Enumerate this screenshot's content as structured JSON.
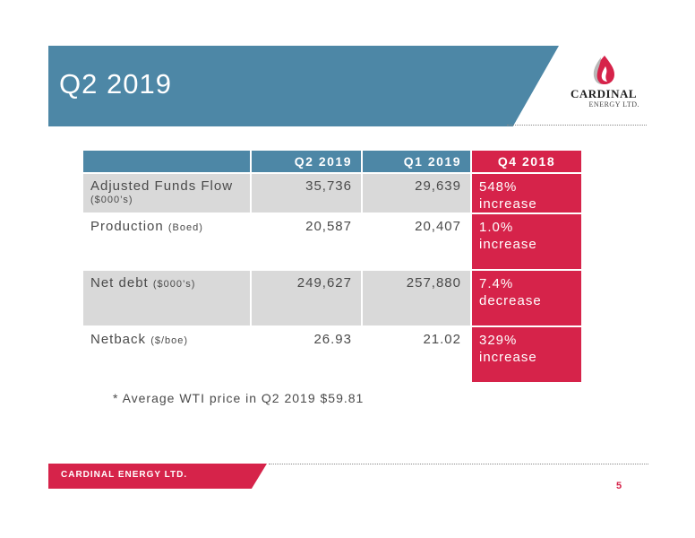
{
  "slide": {
    "title": "Q2 2019",
    "page_number": "5"
  },
  "logo": {
    "name": "CARDINAL",
    "subtitle": "ENERGY LTD."
  },
  "table": {
    "headers": [
      "",
      "Q2 2019",
      "Q1 2019",
      "Q4 2018"
    ],
    "rows": [
      {
        "label": "Adjusted Funds Flow",
        "unit": "($000’s)",
        "q2": "35,736",
        "q1": "29,639",
        "change_value": "548%",
        "change_word": "increase"
      },
      {
        "label": "Production",
        "unit": "(Boed)",
        "q2": "20,587",
        "q1": "20,407",
        "change_value": "1.0%",
        "change_word": "increase"
      },
      {
        "label": "Net debt",
        "unit": "($000’s)",
        "q2": "249,627",
        "q1": "257,880",
        "change_value": "7.4%",
        "change_word": "decrease"
      },
      {
        "label": "Netback",
        "unit": "($/boe)",
        "q2": "26.93",
        "q1": "21.02",
        "change_value": "329%",
        "change_word": "increase"
      }
    ]
  },
  "note": "* Average WTI price in Q2 2019 $59.81",
  "footer": {
    "company": "CARDINAL ENERGY LTD."
  },
  "colors": {
    "banner_blue": "#4d87a6",
    "accent_red": "#d6234a",
    "row_gray": "#d9d9d9"
  }
}
